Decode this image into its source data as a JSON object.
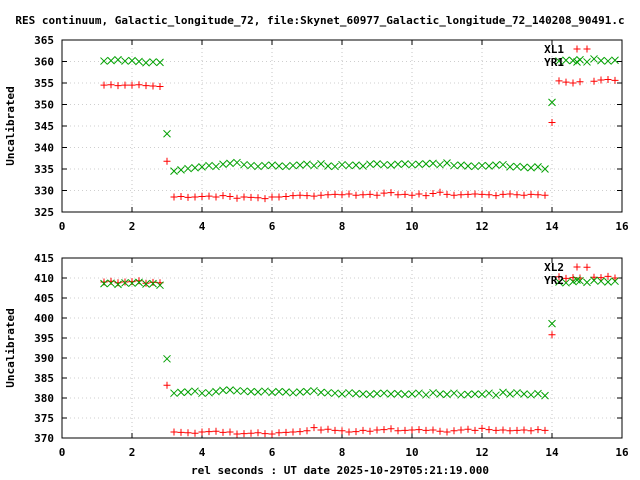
{
  "title": "RES continuum, Galactic_longitude_72, file:Skynet_60977_Galactic_longitude_72_140208_90491.c",
  "xlabel": "rel seconds : UT date 2025-10-29T05:21:19.000",
  "colors": {
    "series1": "#ff0000",
    "series2": "#00a000",
    "axis": "#000000",
    "grid": "#a0a0a0"
  },
  "chart_data": [
    {
      "type": "scatter",
      "ylabel": "Uncalibrated",
      "xlim": [
        0,
        16
      ],
      "ylim": [
        325,
        365
      ],
      "xticks": [
        0,
        2,
        4,
        6,
        8,
        10,
        12,
        14,
        16
      ],
      "yticks": [
        325,
        330,
        335,
        340,
        345,
        350,
        355,
        360,
        365
      ],
      "legend_position": "top-right",
      "grid": true,
      "series": [
        {
          "name": "XL1",
          "marker": "plus",
          "color": "#ff0000",
          "x": [
            1.2,
            1.4,
            1.6,
            1.8,
            2.0,
            2.2,
            2.4,
            2.6,
            2.8,
            3.0,
            3.2,
            3.4,
            3.6,
            3.8,
            4.0,
            4.2,
            4.4,
            4.6,
            4.8,
            5.0,
            5.2,
            5.4,
            5.6,
            5.8,
            6.0,
            6.2,
            6.4,
            6.6,
            6.8,
            7.0,
            7.2,
            7.4,
            7.6,
            7.8,
            8.0,
            8.2,
            8.4,
            8.6,
            8.8,
            9.0,
            9.2,
            9.4,
            9.6,
            9.8,
            10.0,
            10.2,
            10.4,
            10.6,
            10.8,
            11.0,
            11.2,
            11.4,
            11.6,
            11.8,
            12.0,
            12.2,
            12.4,
            12.6,
            12.8,
            13.0,
            13.2,
            13.4,
            13.6,
            13.8,
            14.0,
            14.2,
            14.4,
            14.6,
            14.8,
            15.0,
            15.2,
            15.4,
            15.6,
            15.8
          ],
          "y": [
            354.5,
            354.6,
            354.4,
            354.5,
            354.5,
            354.6,
            354.4,
            354.3,
            354.2,
            336.8,
            328.5,
            328.6,
            328.4,
            328.5,
            328.6,
            328.7,
            328.5,
            328.8,
            328.6,
            328.2,
            328.5,
            328.4,
            328.3,
            328.1,
            328.5,
            328.5,
            328.6,
            328.8,
            328.9,
            328.8,
            328.7,
            328.9,
            329.0,
            329.1,
            329.0,
            329.2,
            328.9,
            329.0,
            329.1,
            328.9,
            329.4,
            329.5,
            329.0,
            329.1,
            328.9,
            329.2,
            328.8,
            329.3,
            329.6,
            329.1,
            328.9,
            329.0,
            329.1,
            329.2,
            329.1,
            329.0,
            328.8,
            329.1,
            329.2,
            329.0,
            328.9,
            329.1,
            329.0,
            328.9,
            345.8,
            355.5,
            355.2,
            355.0,
            355.3,
            362.9,
            355.4,
            355.7,
            355.8,
            355.6
          ]
        },
        {
          "name": "YR1",
          "marker": "cross",
          "color": "#00a000",
          "x": [
            1.2,
            1.4,
            1.6,
            1.8,
            2.0,
            2.2,
            2.4,
            2.6,
            2.8,
            3.0,
            3.2,
            3.4,
            3.6,
            3.8,
            4.0,
            4.2,
            4.4,
            4.6,
            4.8,
            5.0,
            5.2,
            5.4,
            5.6,
            5.8,
            6.0,
            6.2,
            6.4,
            6.6,
            6.8,
            7.0,
            7.2,
            7.4,
            7.6,
            7.8,
            8.0,
            8.2,
            8.4,
            8.6,
            8.8,
            9.0,
            9.2,
            9.4,
            9.6,
            9.8,
            10.0,
            10.2,
            10.4,
            10.6,
            10.8,
            11.0,
            11.2,
            11.4,
            11.6,
            11.8,
            12.0,
            12.2,
            12.4,
            12.6,
            12.8,
            13.0,
            13.2,
            13.4,
            13.6,
            13.8,
            14.0,
            14.2,
            14.4,
            14.6,
            14.8,
            15.0,
            15.2,
            15.4,
            15.6,
            15.8
          ],
          "y": [
            360.1,
            360.2,
            360.4,
            360.1,
            360.2,
            360.0,
            359.7,
            359.9,
            359.8,
            343.2,
            334.5,
            334.8,
            335.1,
            335.3,
            335.5,
            335.8,
            335.6,
            336.1,
            336.3,
            336.5,
            336.0,
            335.8,
            335.6,
            335.8,
            335.9,
            335.7,
            335.6,
            335.8,
            335.9,
            336.1,
            335.8,
            336.2,
            335.7,
            335.6,
            336.0,
            335.8,
            335.9,
            335.7,
            336.1,
            336.2,
            336.0,
            335.9,
            336.1,
            336.2,
            336.0,
            336.1,
            336.2,
            336.3,
            336.0,
            336.4,
            335.8,
            335.9,
            335.7,
            335.6,
            335.8,
            335.7,
            335.9,
            336.0,
            335.5,
            335.6,
            335.4,
            335.3,
            335.5,
            335.0,
            350.5,
            360.1,
            360.3,
            360.2,
            360.4,
            359.9,
            360.6,
            360.2,
            360.1,
            360.3
          ]
        }
      ]
    },
    {
      "type": "scatter",
      "ylabel": "Uncalibrated",
      "xlim": [
        0,
        16
      ],
      "ylim": [
        370,
        415
      ],
      "xticks": [
        0,
        2,
        4,
        6,
        8,
        10,
        12,
        14,
        16
      ],
      "yticks": [
        370,
        375,
        380,
        385,
        390,
        395,
        400,
        405,
        410,
        415
      ],
      "legend_position": "top-right",
      "grid": true,
      "series": [
        {
          "name": "XL2",
          "marker": "plus",
          "color": "#ff0000",
          "x": [
            1.2,
            1.4,
            1.6,
            1.8,
            2.0,
            2.2,
            2.4,
            2.6,
            2.8,
            3.0,
            3.2,
            3.4,
            3.6,
            3.8,
            4.0,
            4.2,
            4.4,
            4.6,
            4.8,
            5.0,
            5.2,
            5.4,
            5.6,
            5.8,
            6.0,
            6.2,
            6.4,
            6.6,
            6.8,
            7.0,
            7.2,
            7.4,
            7.6,
            7.8,
            8.0,
            8.2,
            8.4,
            8.6,
            8.8,
            9.0,
            9.2,
            9.4,
            9.6,
            9.8,
            10.0,
            10.2,
            10.4,
            10.6,
            10.8,
            11.0,
            11.2,
            11.4,
            11.6,
            11.8,
            12.0,
            12.2,
            12.4,
            12.6,
            12.8,
            13.0,
            13.2,
            13.4,
            13.6,
            13.8,
            14.0,
            14.2,
            14.4,
            14.6,
            14.8,
            15.0,
            15.2,
            15.4,
            15.6,
            15.8
          ],
          "y": [
            409.0,
            409.2,
            408.8,
            409.0,
            409.1,
            409.3,
            408.7,
            408.9,
            408.8,
            383.2,
            371.5,
            371.4,
            371.3,
            371.2,
            371.5,
            371.6,
            371.7,
            371.4,
            371.5,
            371.0,
            371.1,
            371.2,
            371.3,
            371.1,
            371.0,
            371.3,
            371.4,
            371.5,
            371.6,
            371.8,
            372.6,
            372.0,
            372.2,
            371.9,
            371.8,
            371.5,
            371.6,
            371.9,
            371.7,
            372.0,
            372.1,
            372.3,
            371.8,
            371.9,
            372.0,
            372.1,
            371.9,
            372.0,
            371.7,
            371.5,
            371.8,
            372.0,
            372.2,
            371.9,
            372.4,
            372.1,
            371.9,
            372.0,
            371.8,
            371.9,
            372.0,
            371.8,
            372.1,
            371.9,
            395.8,
            410.3,
            409.9,
            410.1,
            410.0,
            412.7,
            410.2,
            410.1,
            410.4,
            410.0
          ]
        },
        {
          "name": "YR2",
          "marker": "cross",
          "color": "#00a000",
          "x": [
            1.2,
            1.4,
            1.6,
            1.8,
            2.0,
            2.2,
            2.4,
            2.6,
            2.8,
            3.0,
            3.2,
            3.4,
            3.6,
            3.8,
            4.0,
            4.2,
            4.4,
            4.6,
            4.8,
            5.0,
            5.2,
            5.4,
            5.6,
            5.8,
            6.0,
            6.2,
            6.4,
            6.6,
            6.8,
            7.0,
            7.2,
            7.4,
            7.6,
            7.8,
            8.0,
            8.2,
            8.4,
            8.6,
            8.8,
            9.0,
            9.2,
            9.4,
            9.6,
            9.8,
            10.0,
            10.2,
            10.4,
            10.6,
            10.8,
            11.0,
            11.2,
            11.4,
            11.6,
            11.8,
            12.0,
            12.2,
            12.4,
            12.6,
            12.8,
            13.0,
            13.2,
            13.4,
            13.6,
            13.8,
            14.0,
            14.2,
            14.4,
            14.6,
            14.8,
            15.0,
            15.2,
            15.4,
            15.6,
            15.8
          ],
          "y": [
            408.6,
            408.7,
            408.4,
            408.8,
            408.7,
            408.9,
            408.5,
            408.6,
            408.2,
            389.8,
            381.2,
            381.4,
            381.5,
            381.7,
            381.2,
            381.3,
            381.6,
            381.9,
            382.0,
            381.8,
            381.7,
            381.6,
            381.5,
            381.7,
            381.4,
            381.6,
            381.5,
            381.3,
            381.5,
            381.6,
            381.8,
            381.4,
            381.3,
            381.2,
            381.0,
            381.3,
            381.1,
            381.0,
            380.9,
            381.1,
            381.2,
            381.0,
            381.1,
            380.9,
            381.0,
            381.2,
            380.8,
            381.3,
            381.0,
            380.9,
            381.2,
            380.8,
            380.9,
            381.0,
            380.9,
            381.2,
            380.7,
            381.4,
            381.0,
            381.3,
            381.0,
            380.8,
            381.1,
            380.6,
            398.6,
            409.0,
            408.8,
            409.1,
            409.3,
            408.9,
            409.4,
            409.2,
            409.0,
            409.2
          ]
        }
      ]
    }
  ]
}
